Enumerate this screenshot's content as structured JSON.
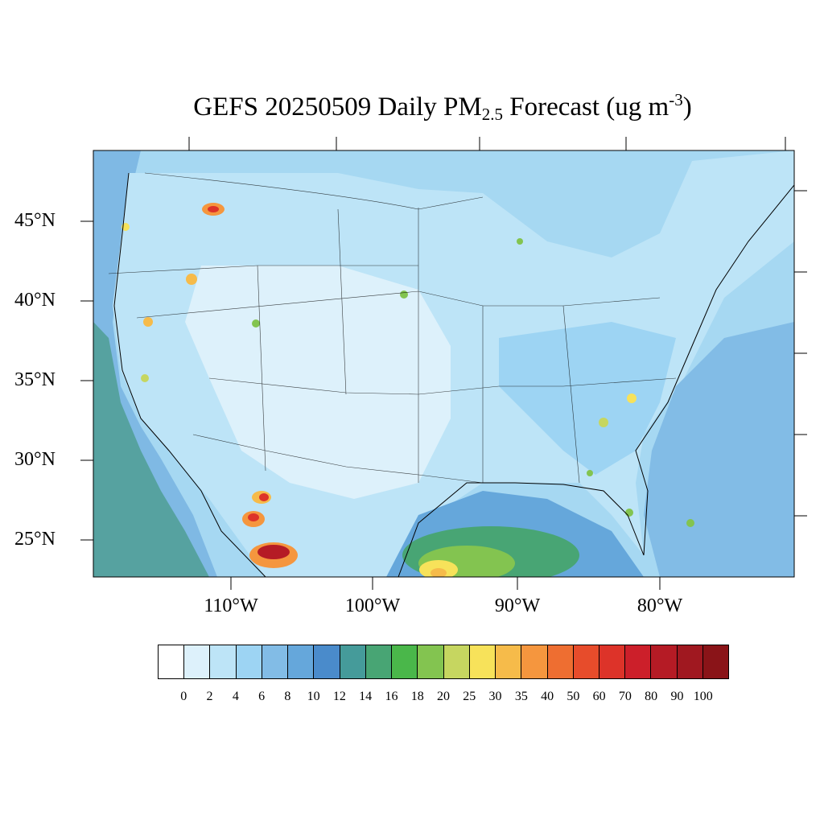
{
  "title": {
    "prefix": "GEFS 20250509 Daily PM",
    "subscript": "2.5",
    "middle": " Forecast (ug m",
    "superscript": "-3",
    "suffix": ")"
  },
  "map": {
    "lat_labels": [
      "45°N",
      "40°N",
      "35°N",
      "30°N",
      "25°N"
    ],
    "lon_labels": [
      "110°W",
      "100°W",
      "90°W",
      "80°W"
    ],
    "background_color": "#a6d8f2"
  },
  "colorbar": {
    "labels": [
      "0",
      "2",
      "4",
      "6",
      "8",
      "10",
      "12",
      "14",
      "16",
      "18",
      "20",
      "25",
      "30",
      "35",
      "40",
      "50",
      "60",
      "70",
      "80",
      "90",
      "100"
    ],
    "colors": [
      "#ffffff",
      "#ddf1fb",
      "#bde4f7",
      "#9dd4f3",
      "#82bce6",
      "#65a7db",
      "#4a8bcb",
      "#459b9a",
      "#48a574",
      "#4ab74a",
      "#83c450",
      "#c6d660",
      "#f7e25a",
      "#f6bb4a",
      "#f5963e",
      "#ee6e31",
      "#e74c2b",
      "#dd3329",
      "#cc1f2a",
      "#b51b25",
      "#a01820",
      "#8a1418"
    ]
  }
}
